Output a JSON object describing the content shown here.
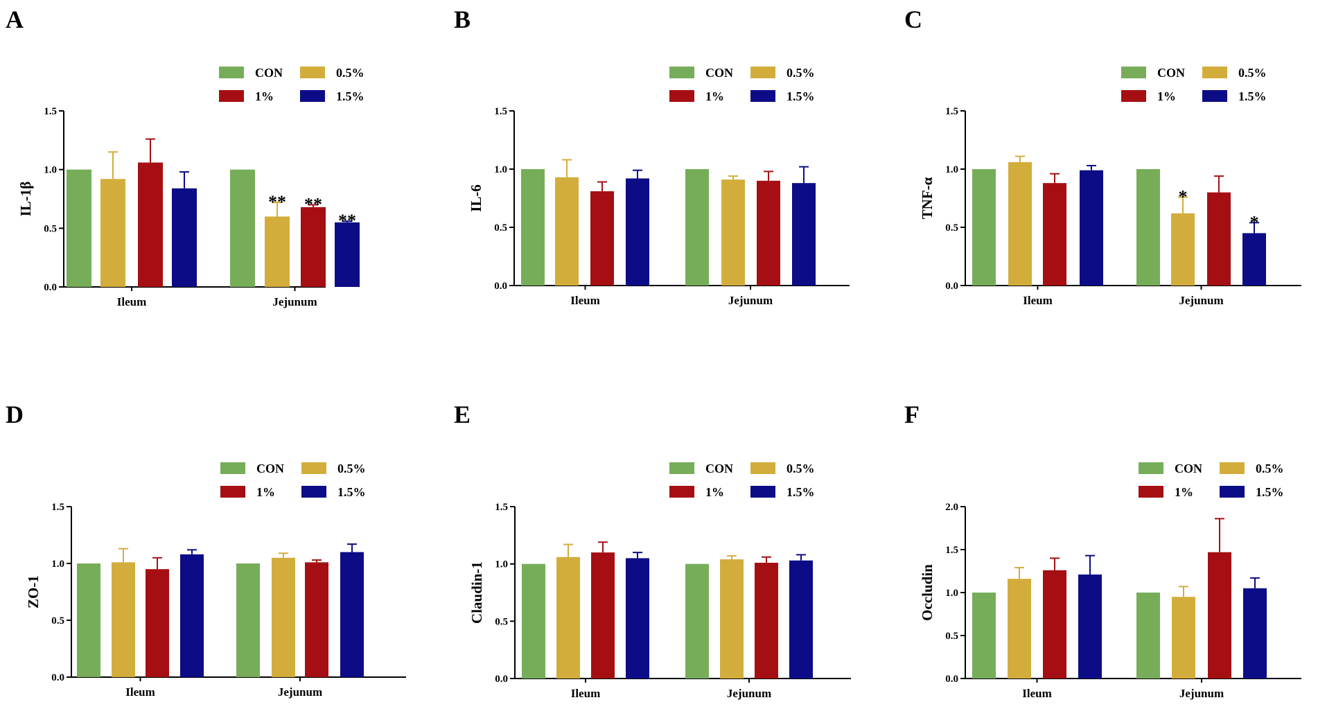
{
  "colors": {
    "CON": "#77AD59",
    "0.5%": "#D3AD3C",
    "1%": "#A50F13",
    "1.5%": "#0C0C86",
    "axis": "#000000"
  },
  "chart_data": [
    {
      "panel": "A",
      "type": "bar",
      "ylabel": "IL-1β",
      "categories": [
        "Ileum",
        "Jejunum"
      ],
      "ylim": [
        0,
        1.5
      ],
      "yticks": [
        "0.0",
        "0.5",
        "1.0",
        "1.5"
      ],
      "legend": [
        "CON",
        "0.5%",
        "1%",
        "1.5%"
      ],
      "series": [
        {
          "name": "CON",
          "values": [
            1.0,
            1.0
          ],
          "errors": [
            0,
            0
          ],
          "sig": [
            "",
            ""
          ]
        },
        {
          "name": "0.5%",
          "values": [
            0.92,
            0.6
          ],
          "errors": [
            0.23,
            0.12
          ],
          "sig": [
            "",
            "**"
          ]
        },
        {
          "name": "1%",
          "values": [
            1.06,
            0.68
          ],
          "errors": [
            0.2,
            0.02
          ],
          "sig": [
            "",
            "**"
          ]
        },
        {
          "name": "1.5%",
          "values": [
            0.84,
            0.55
          ],
          "errors": [
            0.14,
            0.01
          ],
          "sig": [
            "",
            "**"
          ]
        }
      ]
    },
    {
      "panel": "B",
      "type": "bar",
      "ylabel": "IL-6",
      "categories": [
        "Ileum",
        "Jejunum"
      ],
      "ylim": [
        0,
        1.5
      ],
      "yticks": [
        "0.0",
        "0.5",
        "1.0",
        "1.5"
      ],
      "legend": [
        "CON",
        "0.5%",
        "1%",
        "1.5%"
      ],
      "series": [
        {
          "name": "CON",
          "values": [
            1.0,
            1.0
          ],
          "errors": [
            0,
            0
          ],
          "sig": [
            "",
            ""
          ]
        },
        {
          "name": "0.5%",
          "values": [
            0.93,
            0.91
          ],
          "errors": [
            0.15,
            0.03
          ],
          "sig": [
            "",
            ""
          ]
        },
        {
          "name": "1%",
          "values": [
            0.81,
            0.9
          ],
          "errors": [
            0.08,
            0.08
          ],
          "sig": [
            "",
            ""
          ]
        },
        {
          "name": "1.5%",
          "values": [
            0.92,
            0.88
          ],
          "errors": [
            0.07,
            0.14
          ],
          "sig": [
            "",
            ""
          ]
        }
      ]
    },
    {
      "panel": "C",
      "type": "bar",
      "ylabel": "TNF-α",
      "categories": [
        "Ileum",
        "Jejunum"
      ],
      "ylim": [
        0,
        1.5
      ],
      "yticks": [
        "0.0",
        "0.5",
        "1.0",
        "1.5"
      ],
      "legend": [
        "CON",
        "0.5%",
        "1%",
        "1.5%"
      ],
      "series": [
        {
          "name": "CON",
          "values": [
            1.0,
            1.0
          ],
          "errors": [
            0,
            0
          ],
          "sig": [
            "",
            ""
          ]
        },
        {
          "name": "0.5%",
          "values": [
            1.06,
            0.62
          ],
          "errors": [
            0.05,
            0.14
          ],
          "sig": [
            "",
            "*"
          ]
        },
        {
          "name": "1%",
          "values": [
            0.88,
            0.8
          ],
          "errors": [
            0.08,
            0.14
          ],
          "sig": [
            "",
            ""
          ]
        },
        {
          "name": "1.5%",
          "values": [
            0.99,
            0.45
          ],
          "errors": [
            0.04,
            0.09
          ],
          "sig": [
            "",
            "*"
          ]
        }
      ]
    },
    {
      "panel": "D",
      "type": "bar",
      "ylabel": "ZO-1",
      "categories": [
        "Ileum",
        "Jejunum"
      ],
      "ylim": [
        0,
        1.5
      ],
      "yticks": [
        "0.0",
        "0.5",
        "1.0",
        "1.5"
      ],
      "legend": [
        "CON",
        "0.5%",
        "1%",
        "1.5%"
      ],
      "series": [
        {
          "name": "CON",
          "values": [
            1.0,
            1.0
          ],
          "errors": [
            0,
            0
          ],
          "sig": [
            "",
            ""
          ]
        },
        {
          "name": "0.5%",
          "values": [
            1.01,
            1.05
          ],
          "errors": [
            0.12,
            0.04
          ],
          "sig": [
            "",
            ""
          ]
        },
        {
          "name": "1%",
          "values": [
            0.95,
            1.01
          ],
          "errors": [
            0.1,
            0.02
          ],
          "sig": [
            "",
            ""
          ]
        },
        {
          "name": "1.5%",
          "values": [
            1.08,
            1.1
          ],
          "errors": [
            0.04,
            0.07
          ],
          "sig": [
            "",
            ""
          ]
        }
      ]
    },
    {
      "panel": "E",
      "type": "bar",
      "ylabel": "Claudin-1",
      "categories": [
        "Ileum",
        "Jejunum"
      ],
      "ylim": [
        0,
        1.5
      ],
      "yticks": [
        "0.0",
        "0.5",
        "1.0",
        "1.5"
      ],
      "legend": [
        "CON",
        "0.5%",
        "1%",
        "1.5%"
      ],
      "series": [
        {
          "name": "CON",
          "values": [
            1.0,
            1.0
          ],
          "errors": [
            0,
            0
          ],
          "sig": [
            "",
            ""
          ]
        },
        {
          "name": "0.5%",
          "values": [
            1.06,
            1.04
          ],
          "errors": [
            0.11,
            0.03
          ],
          "sig": [
            "",
            ""
          ]
        },
        {
          "name": "1%",
          "values": [
            1.1,
            1.01
          ],
          "errors": [
            0.09,
            0.05
          ],
          "sig": [
            "",
            ""
          ]
        },
        {
          "name": "1.5%",
          "values": [
            1.05,
            1.03
          ],
          "errors": [
            0.05,
            0.05
          ],
          "sig": [
            "",
            ""
          ]
        }
      ]
    },
    {
      "panel": "F",
      "type": "bar",
      "ylabel": "Occludin",
      "categories": [
        "Ileum",
        "Jejunum"
      ],
      "ylim": [
        0,
        2.0
      ],
      "yticks": [
        "0.0",
        "0.5",
        "1.0",
        "1.5",
        "2.0"
      ],
      "legend": [
        "CON",
        "0.5%",
        "1%",
        "1.5%"
      ],
      "series": [
        {
          "name": "CON",
          "values": [
            1.0,
            1.0
          ],
          "errors": [
            0,
            0
          ],
          "sig": [
            "",
            ""
          ]
        },
        {
          "name": "0.5%",
          "values": [
            1.16,
            0.95
          ],
          "errors": [
            0.13,
            0.12
          ],
          "sig": [
            "",
            ""
          ]
        },
        {
          "name": "1%",
          "values": [
            1.26,
            1.47
          ],
          "errors": [
            0.14,
            0.39
          ],
          "sig": [
            "",
            ""
          ]
        },
        {
          "name": "1.5%",
          "values": [
            1.21,
            1.05
          ],
          "errors": [
            0.22,
            0.12
          ],
          "sig": [
            "",
            ""
          ]
        }
      ]
    }
  ]
}
